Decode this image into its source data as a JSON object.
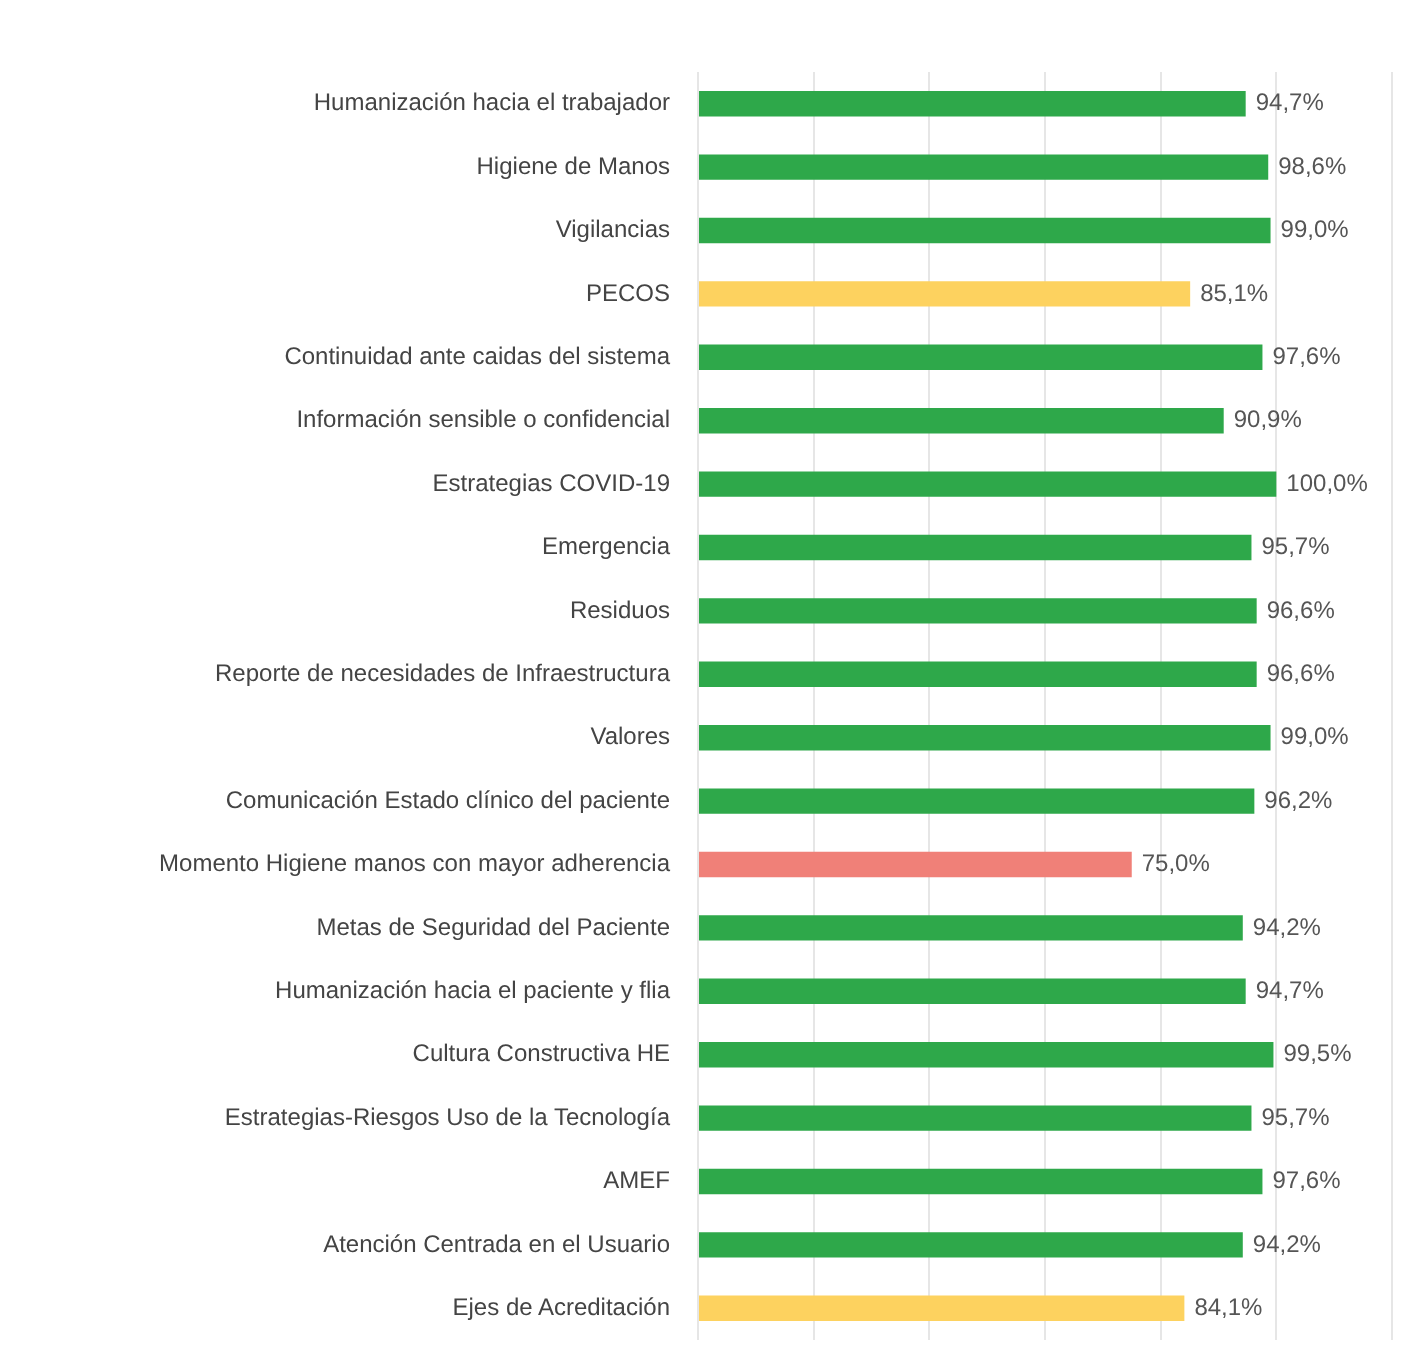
{
  "chart_data": {
    "type": "bar",
    "orientation": "horizontal",
    "categories": [
      "Humanización hacia el trabajador",
      "Higiene de Manos",
      "Vigilancias",
      "PECOS",
      "Continuidad ante caidas del sistema",
      "Información sensible o confidencial",
      "Estrategias COVID-19",
      "Emergencia",
      "Residuos",
      "Reporte de necesidades de Infraestructura",
      "Valores",
      "Comunicación Estado clínico del paciente",
      "Momento Higiene manos con mayor adherencia",
      "Metas de Seguridad del Paciente",
      "Humanización hacia el paciente y flia",
      "Cultura Constructiva HE",
      "Estrategias-Riesgos Uso de la Tecnología",
      "AMEF",
      "Atención Centrada en el Usuario",
      "Ejes de Acreditación"
    ],
    "values": [
      94.7,
      98.6,
      99.0,
      85.1,
      97.6,
      90.9,
      100.0,
      95.7,
      96.6,
      96.6,
      99.0,
      96.2,
      75.0,
      94.2,
      94.7,
      99.5,
      95.7,
      97.6,
      94.2,
      84.1
    ],
    "value_labels": [
      "94,7%",
      "98,6%",
      "99,0%",
      "85,1%",
      "97,6%",
      "90,9%",
      "100,0%",
      "95,7%",
      "96,6%",
      "96,6%",
      "99,0%",
      "96,2%",
      "75,0%",
      "94,2%",
      "94,7%",
      "99,5%",
      "95,7%",
      "97,6%",
      "94,2%",
      "84,1%"
    ],
    "colors": [
      "#2ea84a",
      "#2ea84a",
      "#2ea84a",
      "#fdd25f",
      "#2ea84a",
      "#2ea84a",
      "#2ea84a",
      "#2ea84a",
      "#2ea84a",
      "#2ea84a",
      "#2ea84a",
      "#2ea84a",
      "#f08078",
      "#2ea84a",
      "#2ea84a",
      "#2ea84a",
      "#2ea84a",
      "#2ea84a",
      "#2ea84a",
      "#fdd25f"
    ],
    "xlim": [
      0,
      120
    ],
    "xticks": [
      {
        "value": 0,
        "label": null
      },
      {
        "value": 20,
        "label": null
      },
      {
        "value": 40,
        "label": null
      },
      {
        "value": 60,
        "label": null
      },
      {
        "value": 80,
        "label": null
      },
      {
        "value": 100,
        "label": null
      },
      {
        "value": 120,
        "label": null
      }
    ],
    "grid": "x",
    "tick_labels": "y",
    "legend": false
  }
}
